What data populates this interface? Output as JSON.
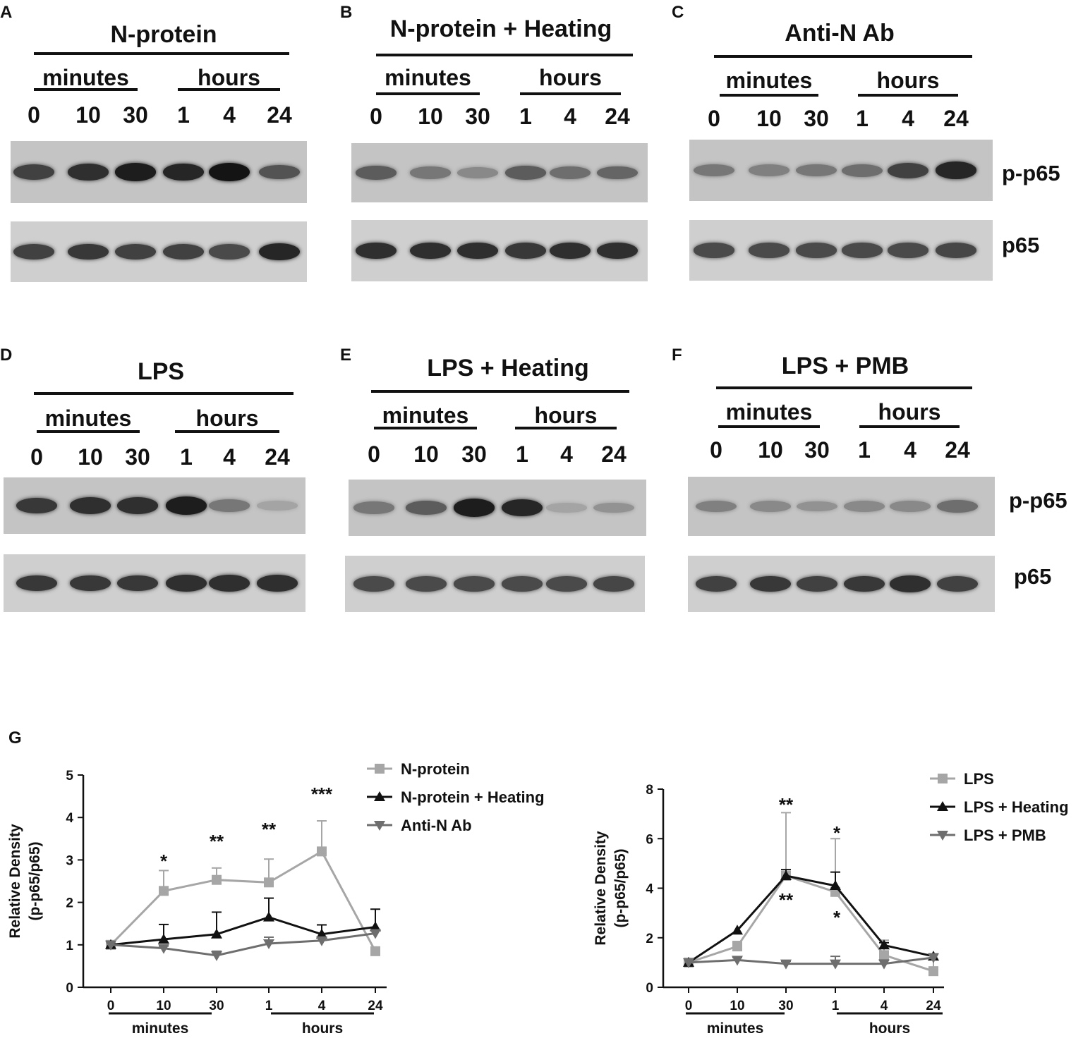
{
  "blots": {
    "time_units": {
      "minutes": "minutes",
      "hours": "hours"
    },
    "lane_labels": [
      "0",
      "10",
      "30",
      "1",
      "4",
      "24"
    ],
    "row_labels": {
      "phospho": "p-p65",
      "total": "p65"
    },
    "panels": [
      {
        "letter": "A",
        "title": "N-protein",
        "p_p65_intensity": [
          0.75,
          0.85,
          0.95,
          0.9,
          1.0,
          0.65
        ],
        "p65_intensity": [
          0.75,
          0.8,
          0.75,
          0.75,
          0.7,
          0.9
        ]
      },
      {
        "letter": "B",
        "title": "N-protein + Heating",
        "p_p65_intensity": [
          0.6,
          0.45,
          0.35,
          0.6,
          0.5,
          0.55
        ],
        "p65_intensity": [
          0.85,
          0.85,
          0.85,
          0.8,
          0.85,
          0.85
        ]
      },
      {
        "letter": "C",
        "title": "Anti-N Ab",
        "p_p65_intensity": [
          0.45,
          0.4,
          0.45,
          0.5,
          0.75,
          0.9
        ],
        "p65_intensity": [
          0.7,
          0.7,
          0.7,
          0.7,
          0.7,
          0.72
        ]
      },
      {
        "letter": "D",
        "title": "LPS",
        "p_p65_intensity": [
          0.8,
          0.85,
          0.85,
          0.95,
          0.45,
          0.2
        ],
        "p65_intensity": [
          0.8,
          0.8,
          0.8,
          0.85,
          0.85,
          0.85
        ]
      },
      {
        "letter": "E",
        "title": "LPS + Heating",
        "p_p65_intensity": [
          0.45,
          0.6,
          0.95,
          0.9,
          0.2,
          0.3
        ],
        "p65_intensity": [
          0.7,
          0.7,
          0.7,
          0.7,
          0.7,
          0.72
        ]
      },
      {
        "letter": "F",
        "title": "LPS + PMB",
        "p_p65_intensity": [
          0.4,
          0.35,
          0.3,
          0.35,
          0.35,
          0.5
        ],
        "p65_intensity": [
          0.75,
          0.8,
          0.75,
          0.8,
          0.85,
          0.75
        ]
      }
    ]
  },
  "chart_data": [
    {
      "type": "line",
      "panel_letter": "G",
      "categories": [
        "0",
        "10",
        "30",
        "1",
        "4",
        "24"
      ],
      "group_labels": {
        "minutes": "minutes",
        "hours": "hours"
      },
      "ylabel_line1": "Relative Density",
      "ylabel_line2": "(p-p65/p65)",
      "ylim": [
        0,
        5
      ],
      "yticks": [
        "0",
        "1",
        "2",
        "3",
        "4",
        "5"
      ],
      "series": [
        {
          "name": "N-protein",
          "color": "#a6a6a6",
          "marker": "square",
          "values": [
            1.0,
            2.27,
            2.53,
            2.47,
            3.2,
            0.85
          ],
          "error": [
            0,
            0.48,
            0.28,
            0.55,
            0.72,
            0
          ]
        },
        {
          "name": "N-protein + Heating",
          "color": "#111111",
          "marker": "triangle-up",
          "values": [
            1.0,
            1.13,
            1.25,
            1.65,
            1.25,
            1.42
          ],
          "error": [
            0,
            0.35,
            0.52,
            0.45,
            0.22,
            0.42
          ]
        },
        {
          "name": "Anti-N Ab",
          "color": "#6e6e6e",
          "marker": "triangle-down",
          "values": [
            1.0,
            0.92,
            0.75,
            1.03,
            1.1,
            1.27
          ],
          "error": [
            0,
            0.05,
            0.1,
            0.15,
            0.08,
            0.08
          ]
        }
      ],
      "annotations": [
        {
          "x": "10",
          "text": "*"
        },
        {
          "x": "30",
          "text": "**"
        },
        {
          "x": "1",
          "text": "**"
        },
        {
          "x": "4",
          "text": "***"
        }
      ]
    },
    {
      "type": "line",
      "categories": [
        "0",
        "10",
        "30",
        "1",
        "4",
        "24"
      ],
      "group_labels": {
        "minutes": "minutes",
        "hours": "hours"
      },
      "ylabel_line1": "Relative Density",
      "ylabel_line2": "(p-p65/p65)",
      "ylim": [
        0,
        8
      ],
      "yticks": [
        "0",
        "2",
        "4",
        "6",
        "8"
      ],
      "series": [
        {
          "name": "LPS",
          "color": "#a6a6a6",
          "marker": "square",
          "values": [
            1.0,
            1.65,
            4.5,
            3.85,
            1.3,
            0.65
          ],
          "error": [
            0,
            0.2,
            2.55,
            2.15,
            0.6,
            0.7
          ]
        },
        {
          "name": "LPS + Heating",
          "color": "#111111",
          "marker": "triangle-up",
          "values": [
            1.0,
            2.3,
            4.5,
            4.1,
            1.7,
            1.25
          ],
          "error": [
            0,
            0,
            0.25,
            0.55,
            0.1,
            0.1
          ]
        },
        {
          "name": "LPS + PMB",
          "color": "#6e6e6e",
          "marker": "triangle-down",
          "values": [
            1.0,
            1.1,
            0.95,
            0.95,
            0.95,
            1.2
          ],
          "error": [
            0,
            0.1,
            0.1,
            0.3,
            0.15,
            0.15
          ]
        }
      ],
      "annotations": [
        {
          "x": "30",
          "text": "**",
          "position": "above"
        },
        {
          "x": "30",
          "text": "**",
          "position": "below"
        },
        {
          "x": "1",
          "text": "*",
          "position": "above"
        },
        {
          "x": "1",
          "text": "*",
          "position": "below"
        }
      ]
    }
  ]
}
